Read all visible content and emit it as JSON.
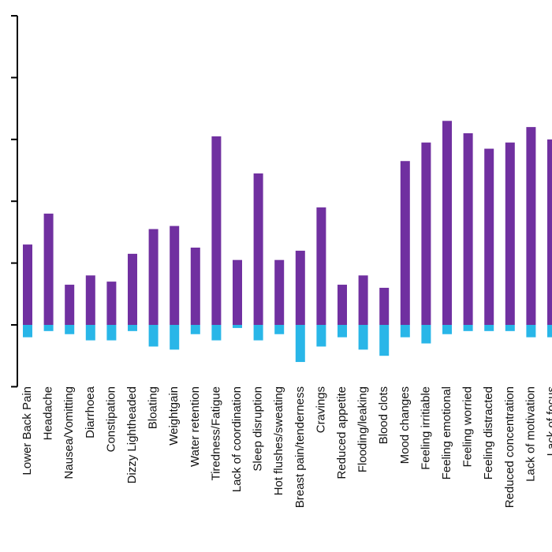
{
  "chart_data": {
    "type": "bar",
    "title": "",
    "xlabel": "",
    "ylabel": "",
    "ylim": [
      -2,
      10
    ],
    "grid": false,
    "legend": "none",
    "colors": {
      "positive": "#7030A0",
      "negative": "#29B6E8",
      "axis": "#000000"
    },
    "categories": [
      "Lower Back Pain",
      "Headache",
      "Nausea/Vomitting",
      "Diarrhoea",
      "Constipation",
      "Dizzy Lightheaded",
      "Bloating",
      "Weightgain",
      "Water retention",
      "Tiredness/Fatigue",
      "Lack of coordination",
      "Sleep disruption",
      "Hot flushes/sweating",
      "Breast pain/tenderness",
      "Cravings",
      "Reduced appetite",
      "Flooding/leaking",
      "Blood clots",
      "Mood changes",
      "Feeling irritiable",
      "Feeling emotional",
      "Feeling worried",
      "Feeling distracted",
      "Reduced concentration",
      "Lack of motivation",
      "Lack of focus"
    ],
    "series": [
      {
        "values": [
          2.6,
          3.6,
          1.3,
          1.6,
          1.4,
          2.3,
          3.1,
          3.2,
          2.5,
          6.1,
          2.1,
          4.9,
          2.1,
          2.4,
          3.8,
          1.3,
          1.6,
          1.2,
          5.3,
          5.9,
          6.6,
          6.2,
          5.7,
          5.9,
          6.4,
          6.0
        ]
      },
      {
        "values": [
          -0.4,
          -0.2,
          -0.3,
          -0.5,
          -0.5,
          -0.2,
          -0.7,
          -0.8,
          -0.3,
          -0.5,
          -0.1,
          -0.5,
          -0.3,
          -1.2,
          -0.7,
          -0.4,
          -0.8,
          -1.0,
          -0.4,
          -0.6,
          -0.3,
          -0.2,
          -0.2,
          -0.2,
          -0.4,
          -0.4
        ]
      }
    ]
  }
}
